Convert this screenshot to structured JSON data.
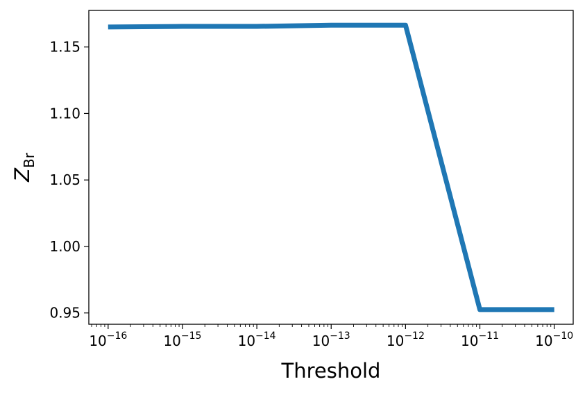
{
  "chart_data": {
    "type": "line",
    "xlabel": "Threshold",
    "ylabel": {
      "base": "Z",
      "subscript": "Br"
    },
    "x_scale": "log",
    "xlim": [
      5.5e-17,
      1.8e-10
    ],
    "ylim": [
      0.9415,
      1.1775
    ],
    "x_ticks": [
      {
        "value": 1e-16,
        "base": "10",
        "exponent": "−16"
      },
      {
        "value": 1e-15,
        "base": "10",
        "exponent": "−15"
      },
      {
        "value": 1e-14,
        "base": "10",
        "exponent": "−14"
      },
      {
        "value": 1e-13,
        "base": "10",
        "exponent": "−13"
      },
      {
        "value": 1e-12,
        "base": "10",
        "exponent": "−12"
      },
      {
        "value": 1e-11,
        "base": "10",
        "exponent": "−11"
      },
      {
        "value": 1e-10,
        "base": "10",
        "exponent": "−10"
      }
    ],
    "y_ticks": [
      {
        "value": 0.95,
        "label": "0.95"
      },
      {
        "value": 1.0,
        "label": "1.00"
      },
      {
        "value": 1.05,
        "label": "1.05"
      },
      {
        "value": 1.1,
        "label": "1.10"
      },
      {
        "value": 1.15,
        "label": "1.15"
      }
    ],
    "grid": false,
    "legend": "none",
    "series": [
      {
        "color": "#1f77b4",
        "x": [
          1e-16,
          1e-15,
          1e-14,
          1e-13,
          1e-12,
          1e-11,
          1e-10
        ],
        "y": [
          1.165,
          1.1655,
          1.1655,
          1.1664,
          1.1664,
          0.9525,
          0.9525
        ]
      }
    ]
  }
}
